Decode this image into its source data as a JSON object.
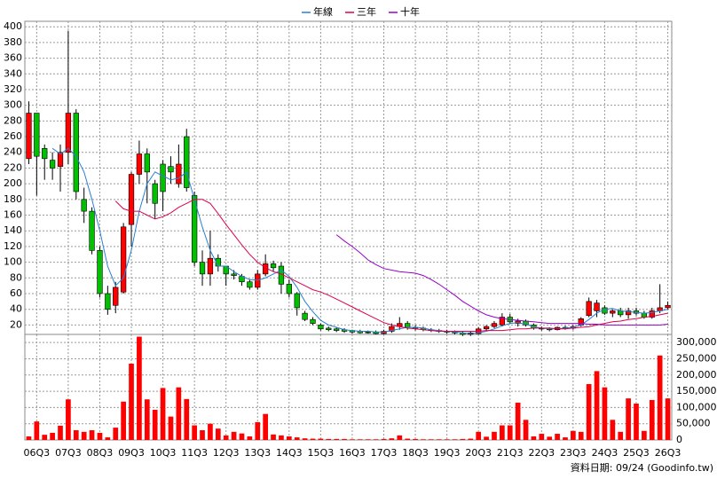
{
  "chart_data": {
    "type": "candlestick",
    "categories": [
      null,
      "06Q3",
      null,
      null,
      null,
      "07Q3",
      null,
      null,
      null,
      "08Q3",
      null,
      null,
      null,
      "09Q3",
      null,
      null,
      null,
      "10Q3",
      null,
      null,
      null,
      "11Q3",
      null,
      null,
      null,
      "12Q3",
      null,
      null,
      null,
      "13Q3",
      null,
      null,
      null,
      "14Q3",
      null,
      null,
      null,
      "15Q3",
      null,
      null,
      null,
      "16Q3",
      null,
      null,
      null,
      "17Q3",
      null,
      null,
      null,
      "18Q3",
      null,
      null,
      null,
      "19Q3",
      null,
      null,
      null,
      "20Q3",
      null,
      null,
      null,
      "21Q3",
      null,
      null,
      null,
      "22Q3",
      null,
      null,
      null,
      "23Q3",
      null,
      null,
      null,
      "24Q3",
      null,
      null,
      null,
      "25Q3",
      null,
      null,
      null,
      "26Q3"
    ],
    "open": [
      232,
      290,
      245,
      230,
      222,
      240,
      290,
      180,
      165,
      115,
      60,
      45,
      62,
      148,
      212,
      238,
      200,
      225,
      222,
      200,
      260,
      185,
      100,
      85,
      105,
      95,
      85,
      82,
      75,
      68,
      85,
      98,
      95,
      72,
      60,
      35,
      27,
      20,
      16,
      15,
      14,
      13,
      12,
      11,
      11,
      9,
      12,
      18,
      22,
      17,
      16,
      14,
      13,
      12,
      11,
      10,
      8,
      9,
      15,
      18,
      20,
      30,
      22,
      25,
      20,
      16,
      15,
      14,
      17,
      16,
      20,
      32,
      38,
      42,
      35,
      38,
      33,
      38,
      35,
      30,
      38,
      42
    ],
    "high": [
      305,
      290,
      250,
      240,
      250,
      395,
      295,
      195,
      170,
      120,
      70,
      75,
      150,
      215,
      255,
      245,
      205,
      230,
      235,
      250,
      270,
      190,
      115,
      140,
      110,
      95,
      90,
      85,
      78,
      90,
      110,
      102,
      100,
      78,
      62,
      38,
      30,
      22,
      18,
      17,
      16,
      14,
      14,
      13,
      13,
      14,
      22,
      30,
      25,
      20,
      18,
      16,
      15,
      14,
      13,
      12,
      12,
      17,
      20,
      25,
      35,
      34,
      28,
      27,
      22,
      18,
      17,
      18,
      19,
      20,
      30,
      55,
      52,
      45,
      40,
      42,
      42,
      42,
      38,
      42,
      72,
      50
    ],
    "low": [
      225,
      185,
      205,
      205,
      190,
      225,
      180,
      150,
      110,
      55,
      33,
      35,
      60,
      120,
      200,
      175,
      155,
      165,
      200,
      195,
      190,
      95,
      70,
      70,
      88,
      70,
      78,
      70,
      65,
      65,
      82,
      88,
      60,
      55,
      32,
      25,
      20,
      13,
      12,
      11,
      10,
      9,
      9,
      9,
      8,
      8,
      10,
      14,
      14,
      13,
      12,
      11,
      10,
      9,
      8,
      6,
      6,
      8,
      13,
      16,
      18,
      22,
      18,
      18,
      14,
      13,
      12,
      13,
      14,
      14,
      18,
      30,
      30,
      33,
      30,
      30,
      28,
      32,
      28,
      28,
      35,
      40
    ],
    "close": [
      290,
      235,
      232,
      220,
      240,
      290,
      190,
      165,
      115,
      60,
      40,
      68,
      145,
      212,
      238,
      215,
      175,
      190,
      215,
      225,
      195,
      100,
      85,
      105,
      95,
      85,
      83,
      75,
      68,
      85,
      98,
      93,
      72,
      60,
      42,
      27,
      22,
      15,
      14,
      13,
      12,
      11,
      10,
      10,
      9,
      12,
      18,
      22,
      17,
      16,
      14,
      13,
      12,
      11,
      10,
      8,
      10,
      15,
      18,
      22,
      30,
      24,
      25,
      20,
      16,
      15,
      14,
      17,
      16,
      18,
      28,
      50,
      48,
      35,
      38,
      33,
      38,
      35,
      30,
      38,
      42,
      45
    ],
    "up_color": "#ff0000",
    "down_color": "#00c000",
    "ylim": [
      8,
      407
    ],
    "yticks": [
      20,
      40,
      60,
      80,
      100,
      120,
      140,
      160,
      180,
      200,
      220,
      240,
      260,
      280,
      300,
      320,
      340,
      360,
      380,
      400
    ],
    "series": [
      {
        "name": "年線",
        "color": "#2a7fd4",
        "values": [
          null,
          null,
          null,
          245,
          238,
          245,
          235,
          215,
          180,
          140,
          95,
          70,
          80,
          115,
          165,
          200,
          215,
          210,
          205,
          207,
          215,
          180,
          145,
          115,
          95,
          95,
          88,
          82,
          78,
          77,
          80,
          85,
          90,
          82,
          68,
          50,
          37,
          26,
          20,
          17,
          14,
          13,
          12,
          12,
          11,
          11,
          13,
          15,
          17,
          17,
          16,
          14,
          13,
          12,
          11,
          10,
          9,
          10,
          12,
          15,
          19,
          22,
          23,
          21,
          18,
          16,
          15,
          15,
          16,
          17,
          20,
          27,
          35,
          40,
          41,
          38,
          37,
          36,
          35,
          36,
          38,
          40
        ]
      },
      {
        "name": "三年",
        "color": "#e0004a",
        "values": [
          null,
          null,
          null,
          null,
          null,
          null,
          null,
          null,
          null,
          null,
          null,
          178,
          168,
          165,
          165,
          160,
          155,
          158,
          163,
          170,
          175,
          180,
          180,
          175,
          162,
          148,
          135,
          122,
          110,
          100,
          93,
          88,
          85,
          80,
          75,
          70,
          65,
          62,
          58,
          53,
          48,
          43,
          38,
          33,
          28,
          23,
          20,
          18,
          16,
          15,
          14,
          13,
          12,
          12,
          12,
          12,
          12,
          12,
          13,
          13,
          13,
          14,
          15,
          15,
          16,
          16,
          16,
          15,
          15,
          16,
          17,
          18,
          20,
          22,
          24,
          25,
          27,
          28,
          30,
          31,
          33,
          35
        ]
      },
      {
        "name": "十年",
        "color": "#9a00c8",
        "values": [
          null,
          null,
          null,
          null,
          null,
          null,
          null,
          null,
          null,
          null,
          null,
          null,
          null,
          null,
          null,
          null,
          null,
          null,
          null,
          null,
          null,
          null,
          null,
          null,
          null,
          null,
          null,
          null,
          null,
          null,
          null,
          null,
          null,
          null,
          null,
          null,
          null,
          null,
          null,
          135,
          127,
          120,
          112,
          103,
          97,
          92,
          90,
          88,
          87,
          86,
          83,
          78,
          72,
          65,
          58,
          50,
          44,
          38,
          33,
          30,
          28,
          27,
          26,
          25,
          24,
          23,
          22,
          22,
          22,
          22,
          22,
          21,
          21,
          20,
          20,
          20,
          20,
          20,
          20,
          20,
          20,
          21
        ]
      }
    ],
    "volume": {
      "color": "#ff0000",
      "axis": "y2",
      "values": [
        11000,
        57000,
        16000,
        22000,
        44000,
        125000,
        30000,
        25000,
        30000,
        22000,
        8000,
        38000,
        118000,
        235000,
        318000,
        125000,
        93000,
        160000,
        72000,
        162000,
        126000,
        45000,
        30000,
        50000,
        35000,
        14000,
        25000,
        20000,
        11000,
        55000,
        80000,
        17000,
        14000,
        11000,
        8000,
        5000,
        4000,
        4000,
        3000,
        3000,
        3000,
        2000,
        2000,
        2000,
        2000,
        3000,
        5000,
        14000,
        4000,
        3000,
        2000,
        2000,
        2000,
        2000,
        2000,
        3000,
        4000,
        25000,
        10000,
        25000,
        45000,
        45000,
        115000,
        62000,
        11000,
        19000,
        10000,
        19000,
        8000,
        28000,
        25000,
        172000,
        212000,
        162000,
        62000,
        25000,
        128000,
        112000,
        28000,
        123000,
        260000,
        128000
      ]
    },
    "y2lim": [
      0,
      325000
    ],
    "y2ticks": [
      0,
      {
        "value": 50000,
        "label": "50,000"
      },
      {
        "value": 100000,
        "label": "100,000"
      },
      {
        "value": 150000,
        "label": "150,000"
      },
      {
        "value": 200000,
        "label": "200,000"
      },
      {
        "value": 250000,
        "label": "250,000"
      },
      {
        "value": 300000,
        "label": "300,000"
      }
    ],
    "grid": true,
    "legend": "top",
    "footnote": "資料日期: 09/24 (Goodinfo.tw)"
  }
}
